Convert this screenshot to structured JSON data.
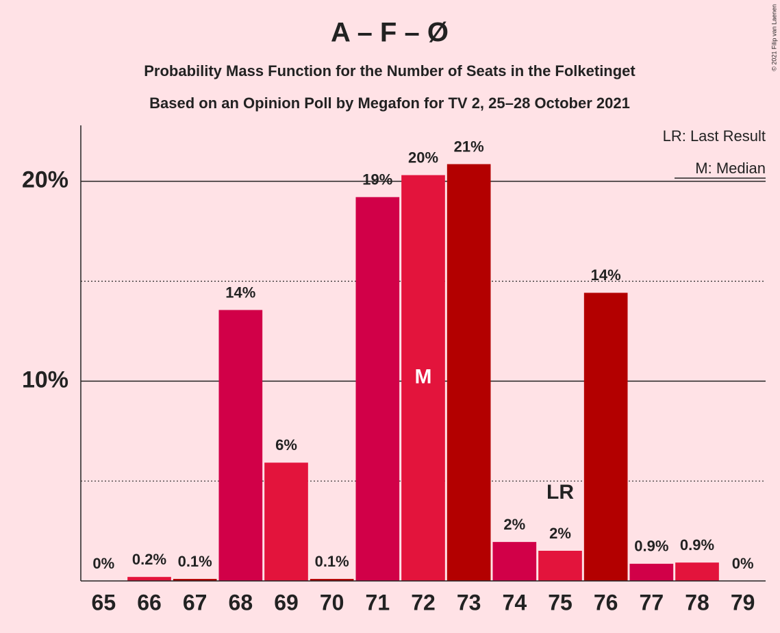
{
  "chart_data": {
    "type": "bar",
    "title": "A – F – Ø",
    "subtitle": "Probability Mass Function for the Number of Seats in the Folketinget",
    "subtitle2": "Based on an Opinion Poll by Megafon for TV 2, 25–28 October 2021",
    "categories": [
      "65",
      "66",
      "67",
      "68",
      "69",
      "70",
      "71",
      "72",
      "73",
      "74",
      "75",
      "76",
      "77",
      "78",
      "79"
    ],
    "values": [
      0,
      0.2,
      0.1,
      13.56,
      5.92,
      0.1,
      19.21,
      20.31,
      20.86,
      1.95,
      1.51,
      14.42,
      0.86,
      0.92,
      0
    ],
    "value_labels": [
      "0%",
      "0.2%",
      "0.1%",
      "14%",
      "6%",
      "0.1%",
      "19%",
      "20%",
      "21%",
      "2%",
      "2%",
      "14%",
      "0.9%",
      "0.9%",
      "0%"
    ],
    "colors": [
      "#d10048",
      "#e3143c",
      "#b30000",
      "#d10048",
      "#e3143c",
      "#b30000",
      "#d10048",
      "#e3143c",
      "#b30000",
      "#d10048",
      "#e3143c",
      "#b30000",
      "#d10048",
      "#e3143c",
      "#b30000"
    ],
    "ylim": [
      0,
      22.8
    ],
    "yticks": [
      {
        "value": 10,
        "label": "10%"
      },
      {
        "value": 20,
        "label": "20%"
      }
    ],
    "minor_yticks": [
      5,
      15
    ],
    "median": {
      "label": "M",
      "category": "72"
    },
    "last_result": {
      "label": "LR",
      "category": "75"
    },
    "legend": [
      "LR: Last Result",
      "M: Median"
    ],
    "copyright": "© 2021 Filip van Laenen"
  }
}
